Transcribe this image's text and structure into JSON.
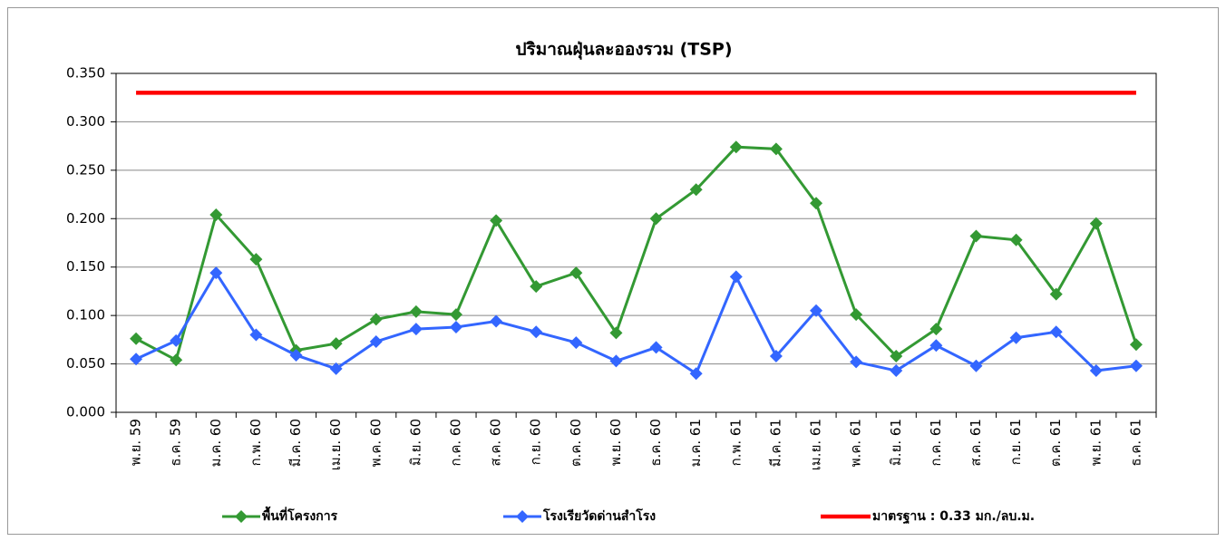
{
  "chart_data": {
    "type": "line",
    "title": "ปริมาณฝุ่นละอองรวม (TSP)",
    "categories": [
      "พ.ย. 59",
      "ธ.ค. 59",
      "ม.ค. 60",
      "ก.พ. 60",
      "มี.ค. 60",
      "เม.ย. 60",
      "พ.ค. 60",
      "มิ.ย. 60",
      "ก.ค. 60",
      "ส.ค. 60",
      "ก.ย. 60",
      "ต.ค. 60",
      "พ.ย. 60",
      "ธ.ค. 60",
      "ม.ค. 61",
      "ก.พ. 61",
      "มี.ค. 61",
      "เม.ย. 61",
      "พ.ค. 61",
      "มิ.ย. 61",
      "ก.ค. 61",
      "ส.ค. 61",
      "ก.ย. 61",
      "ต.ค. 61",
      "พ.ย. 61",
      "ธ.ค. 61"
    ],
    "series": [
      {
        "name": "พื้นที่โครงการ",
        "color": "#339933",
        "marker": true,
        "values": [
          0.076,
          0.054,
          0.204,
          0.158,
          0.064,
          0.071,
          0.096,
          0.104,
          0.101,
          0.198,
          0.13,
          0.144,
          0.082,
          0.2,
          0.23,
          0.274,
          0.272,
          0.216,
          0.101,
          0.058,
          0.086,
          0.182,
          0.178,
          0.122,
          0.195,
          0.07
        ]
      },
      {
        "name": "โรงเรียวัดด่านสำโรง",
        "color": "#3366ff",
        "marker": true,
        "values": [
          0.055,
          0.074,
          0.144,
          0.08,
          0.059,
          0.045,
          0.073,
          0.086,
          0.088,
          0.094,
          0.083,
          0.072,
          0.053,
          0.067,
          0.04,
          0.14,
          0.058,
          0.105,
          0.052,
          0.043,
          0.069,
          0.048,
          0.077,
          0.083,
          0.043,
          0.048
        ]
      },
      {
        "name": "มาตรฐาน : 0.33 มก./ลบ.ม.",
        "color": "#ff0000",
        "marker": false,
        "values": [
          0.33,
          0.33,
          0.33,
          0.33,
          0.33,
          0.33,
          0.33,
          0.33,
          0.33,
          0.33,
          0.33,
          0.33,
          0.33,
          0.33,
          0.33,
          0.33,
          0.33,
          0.33,
          0.33,
          0.33,
          0.33,
          0.33,
          0.33,
          0.33,
          0.33,
          0.33
        ]
      }
    ],
    "ylim": [
      0,
      0.35
    ],
    "yticks": [
      {
        "value": 0,
        "label": "0.000"
      },
      {
        "value": 0.05,
        "label": "0.050"
      },
      {
        "value": 0.1,
        "label": "0.100"
      },
      {
        "value": 0.15,
        "label": "0.150"
      },
      {
        "value": 0.2,
        "label": "0.200"
      },
      {
        "value": 0.25,
        "label": "0.250"
      },
      {
        "value": 0.3,
        "label": "0.300"
      },
      {
        "value": 0.35,
        "label": "0.350"
      }
    ],
    "grid": true,
    "legend": "bottom"
  }
}
